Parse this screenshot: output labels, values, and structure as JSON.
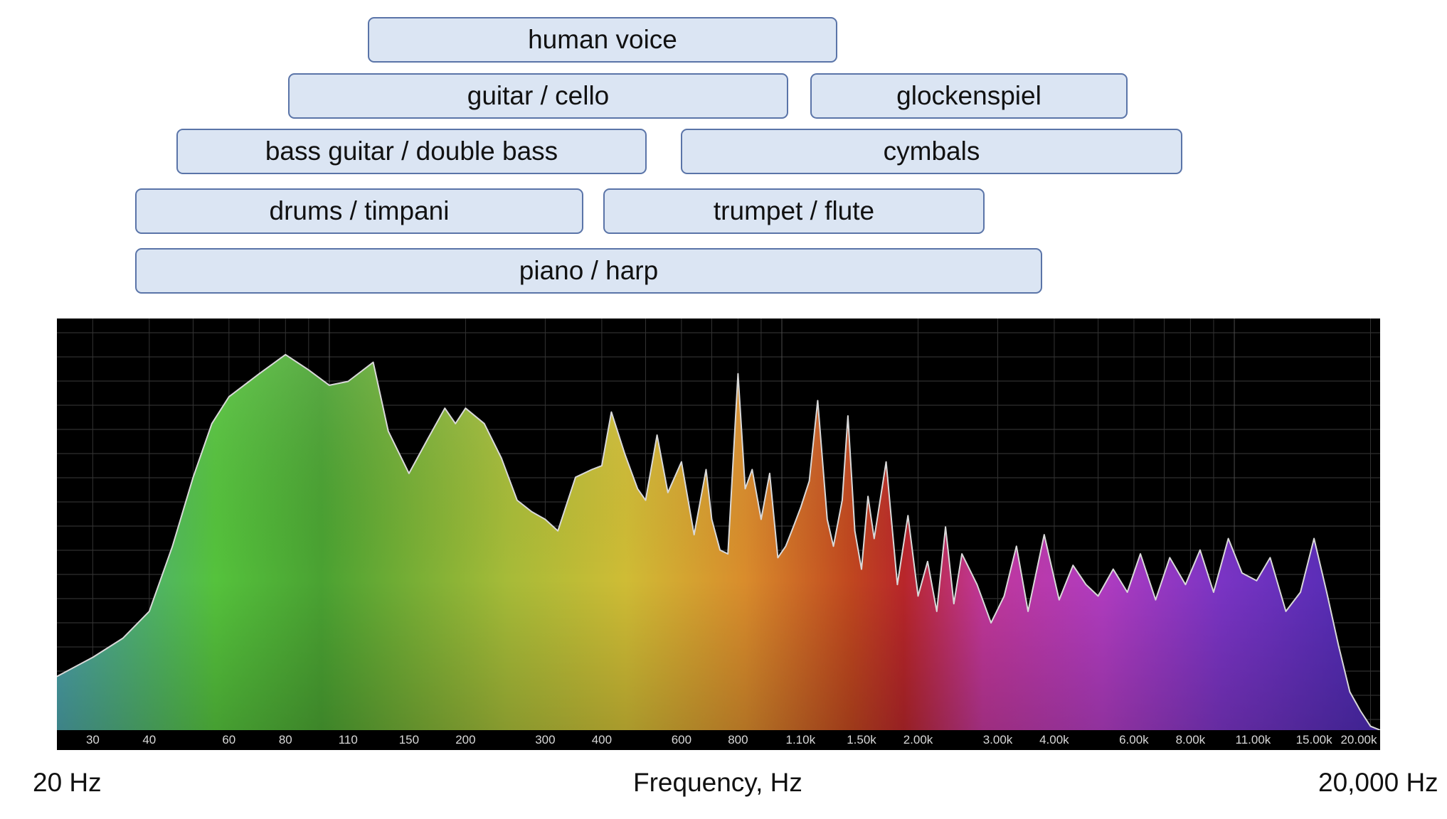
{
  "ranges": [
    {
      "label": "human voice",
      "from_hz": 70,
      "to_hz": 1100
    },
    {
      "label": "guitar / cello",
      "from_hz": 60,
      "to_hz": 1100
    },
    {
      "label": "glockenspiel",
      "from_hz": 1200,
      "to_hz": 10000
    },
    {
      "label": "bass guitar / double bass",
      "from_hz": 40,
      "to_hz": 500
    },
    {
      "label": "cymbals",
      "from_hz": 600,
      "to_hz": 14000
    },
    {
      "label": "drums / timpani",
      "from_hz": 35,
      "to_hz": 330
    },
    {
      "label": "trumpet / flute",
      "from_hz": 350,
      "to_hz": 3200
    },
    {
      "label": "piano / harp",
      "from_hz": 35,
      "to_hz": 4500
    }
  ],
  "chart_data": {
    "type": "area",
    "xlabel": "Frequency, Hz",
    "x_scale": "log",
    "xlim": [
      25,
      21000
    ],
    "ylim": [
      0,
      1
    ],
    "grid": true,
    "left_label": "20 Hz",
    "right_label": "20,000 Hz",
    "tick_labels": [
      "30",
      "40",
      "60",
      "80",
      "110",
      "150",
      "200",
      "300",
      "400",
      "600",
      "800",
      "1.10k",
      "1.50k",
      "2.00k",
      "3.00k",
      "4.00k",
      "6.00k",
      "8.00k",
      "11.00k",
      "15.00k",
      "20.00k"
    ],
    "tick_values": [
      30,
      40,
      60,
      80,
      110,
      150,
      200,
      300,
      400,
      600,
      800,
      1100,
      1500,
      2000,
      3000,
      4000,
      6000,
      8000,
      11000,
      15000,
      20000
    ],
    "series": [
      {
        "values_relative": true,
        "x": [
          25,
          30,
          35,
          40,
          45,
          50,
          55,
          60,
          70,
          80,
          90,
          100,
          110,
          125,
          135,
          150,
          165,
          180,
          190,
          200,
          220,
          240,
          260,
          280,
          300,
          320,
          350,
          380,
          400,
          420,
          450,
          480,
          500,
          530,
          560,
          600,
          640,
          680,
          700,
          730,
          760,
          800,
          830,
          860,
          900,
          940,
          980,
          1020,
          1060,
          1100,
          1150,
          1200,
          1260,
          1300,
          1360,
          1400,
          1450,
          1500,
          1550,
          1600,
          1700,
          1800,
          1900,
          2000,
          2100,
          2200,
          2300,
          2400,
          2500,
          2700,
          2900,
          3100,
          3300,
          3500,
          3800,
          4100,
          4400,
          4700,
          5000,
          5400,
          5800,
          6200,
          6700,
          7200,
          7800,
          8400,
          9000,
          9700,
          10400,
          11200,
          12000,
          13000,
          14000,
          15000,
          16000,
          17000,
          18000,
          19000,
          20000,
          21000
        ],
        "y": [
          0.14,
          0.19,
          0.24,
          0.31,
          0.48,
          0.66,
          0.8,
          0.87,
          0.93,
          0.98,
          0.94,
          0.9,
          0.91,
          0.96,
          0.78,
          0.67,
          0.76,
          0.84,
          0.8,
          0.84,
          0.8,
          0.71,
          0.6,
          0.57,
          0.55,
          0.52,
          0.66,
          0.68,
          0.69,
          0.83,
          0.72,
          0.63,
          0.6,
          0.77,
          0.62,
          0.7,
          0.51,
          0.68,
          0.55,
          0.47,
          0.46,
          0.93,
          0.63,
          0.68,
          0.55,
          0.67,
          0.45,
          0.48,
          0.53,
          0.58,
          0.65,
          0.86,
          0.55,
          0.48,
          0.6,
          0.82,
          0.52,
          0.42,
          0.61,
          0.5,
          0.7,
          0.38,
          0.56,
          0.35,
          0.44,
          0.31,
          0.53,
          0.33,
          0.46,
          0.38,
          0.28,
          0.35,
          0.48,
          0.31,
          0.51,
          0.34,
          0.43,
          0.38,
          0.35,
          0.42,
          0.36,
          0.46,
          0.34,
          0.45,
          0.38,
          0.47,
          0.36,
          0.5,
          0.41,
          0.39,
          0.45,
          0.31,
          0.36,
          0.5,
          0.36,
          0.22,
          0.1,
          0.05,
          0.01,
          0.0
        ]
      }
    ],
    "colors": [
      "#4aa2a4",
      "#56c23a",
      "#d4c23a",
      "#d98a2a",
      "#c23a22",
      "#c23aa0",
      "#9b30c8",
      "#5a28b8"
    ]
  }
}
